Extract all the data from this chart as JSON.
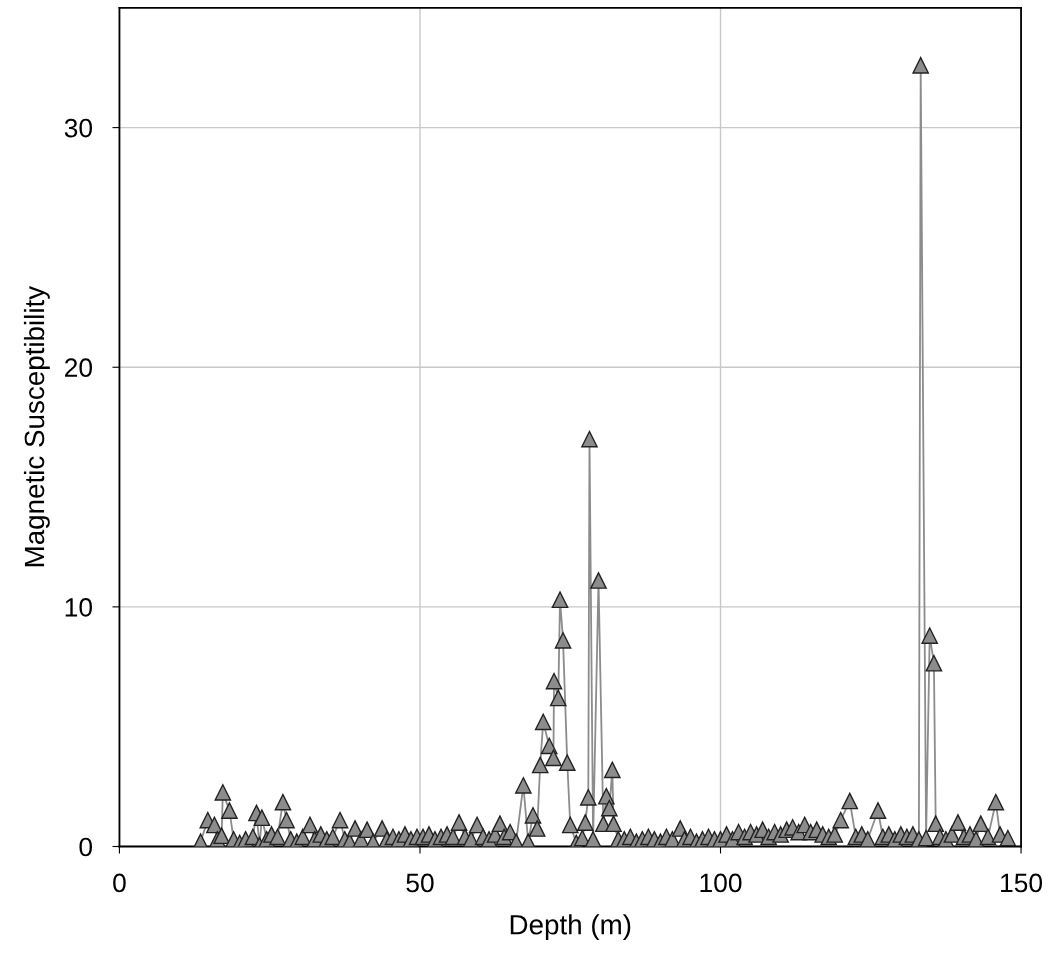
{
  "chart_data": {
    "type": "line",
    "xlabel": "Depth (m)",
    "ylabel": "Magnetic Susceptibility",
    "xlim": [
      0,
      150
    ],
    "xticks": [
      0,
      50,
      100,
      150
    ],
    "ylim": [
      0,
      35
    ],
    "yticks": [
      0,
      10,
      20,
      30
    ],
    "grid": true,
    "marker": "triangle",
    "line_style": "solid",
    "series": [
      {
        "color": "#8c8c8c",
        "x": [
          13.5,
          14.7,
          15.8,
          16.3,
          17,
          17.2,
          18.3,
          19,
          20,
          21,
          22.2,
          22.8,
          23.3,
          23.7,
          24.5,
          25.3,
          26.3,
          27.2,
          27.8,
          28.5,
          29.5,
          30.5,
          31.7,
          32.5,
          33.5,
          34.5,
          35.5,
          36.7,
          37.5,
          38.3,
          39.2,
          40.2,
          41.2,
          42.2,
          43.7,
          44.5,
          45.5,
          46.5,
          47.5,
          48.5,
          49.5,
          50.5,
          51.5,
          52.5,
          53.5,
          54.5,
          55.5,
          56.5,
          57.5,
          58.5,
          59.5,
          60.5,
          61.5,
          62.5,
          63.3,
          64,
          65,
          66,
          67.2,
          68,
          68.8,
          69.5,
          70,
          70.5,
          71.5,
          72.2,
          72.3,
          73,
          73.3,
          73.8,
          74.5,
          75,
          76,
          77,
          77.5,
          78,
          78.2,
          78.8,
          79.7,
          80.5,
          81,
          81.5,
          82,
          82.2,
          83,
          84,
          85,
          86,
          87,
          88,
          89,
          90,
          91,
          92,
          93.3,
          94,
          95,
          96,
          97,
          98,
          99,
          100,
          101,
          102,
          103,
          104,
          105,
          106,
          107,
          108,
          109,
          110,
          111,
          112,
          113,
          114,
          115,
          116,
          117,
          118,
          119,
          120,
          121.5,
          122.5,
          123.5,
          124.5,
          126.2,
          127,
          128,
          129,
          130,
          131,
          132,
          133,
          133.3,
          134.2,
          134.8,
          135.5,
          135.8,
          136.5,
          137.5,
          138.5,
          139.5,
          140.5,
          141.5,
          142.5,
          143.3,
          144.5,
          145.8,
          146.5,
          147.8
        ],
        "values": [
          0.2,
          1.1,
          0.9,
          0.3,
          0.45,
          2.26,
          1.5,
          0.3,
          0.15,
          0.3,
          0.4,
          1.4,
          0.05,
          1.2,
          0.3,
          0.5,
          0.4,
          1.85,
          1.1,
          0.3,
          0.2,
          0.4,
          0.9,
          0.3,
          0.5,
          0.3,
          0.4,
          1.1,
          0.3,
          0.2,
          0.75,
          0.3,
          0.7,
          0.2,
          0.75,
          0.3,
          0.4,
          0.3,
          0.5,
          0.3,
          0.4,
          0.4,
          0.5,
          0.3,
          0.4,
          0.5,
          0.4,
          1.0,
          0.4,
          0.3,
          0.9,
          0.4,
          0.3,
          0.5,
          0.95,
          0.4,
          0.6,
          0.2,
          2.55,
          0.2,
          1.3,
          0.75,
          3.4,
          5.2,
          4.2,
          3.7,
          6.9,
          6.2,
          10.3,
          8.6,
          3.5,
          0.9,
          0.15,
          0.35,
          1.0,
          2.05,
          17.0,
          0.3,
          11.1,
          0.95,
          2.1,
          1.6,
          3.2,
          0.95,
          0.3,
          0.3,
          0.4,
          0.2,
          0.3,
          0.4,
          0.3,
          0.2,
          0.4,
          0.3,
          0.75,
          0.3,
          0.4,
          0.2,
          0.3,
          0.4,
          0.3,
          0.3,
          0.5,
          0.3,
          0.6,
          0.4,
          0.6,
          0.5,
          0.7,
          0.4,
          0.6,
          0.5,
          0.7,
          0.8,
          0.6,
          0.9,
          0.6,
          0.7,
          0.5,
          0.4,
          0.5,
          1.1,
          1.9,
          0.4,
          0.5,
          0.3,
          1.5,
          0.4,
          0.5,
          0.3,
          0.5,
          0.4,
          0.5,
          0.3,
          32.6,
          0.35,
          8.8,
          7.65,
          0.95,
          0.4,
          0.3,
          0.5,
          1.0,
          0.4,
          0.5,
          0.3,
          0.95,
          0.4,
          1.85,
          0.5,
          0.35
        ]
      }
    ]
  }
}
